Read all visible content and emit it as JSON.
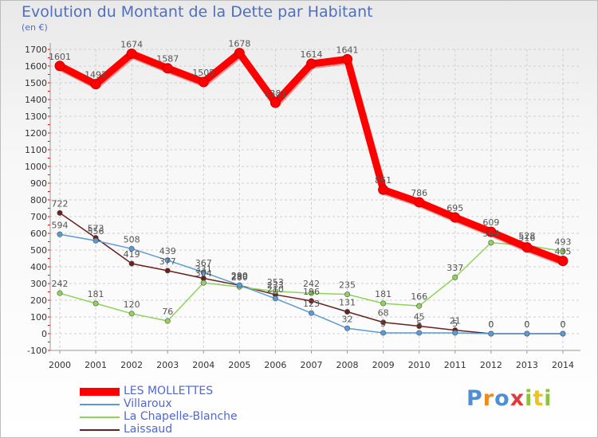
{
  "chart_data": {
    "type": "line",
    "title": "Evolution du Montant de la Dette par Habitant",
    "subtitle": "(en €)",
    "x": [
      "2000",
      "2001",
      "2002",
      "2003",
      "2004",
      "2005",
      "2006",
      "2007",
      "2008",
      "2009",
      "2010",
      "2011",
      "2012",
      "2013",
      "2014"
    ],
    "y_ticks": [
      "-100",
      "0",
      "100",
      "200",
      "300",
      "400",
      "500",
      "600",
      "700",
      "800",
      "900",
      "1000",
      "1100",
      "1200",
      "1300",
      "1400",
      "1500",
      "1600",
      "1700"
    ],
    "ylim": [
      -100,
      1700
    ],
    "grid": true,
    "series": [
      {
        "name": "LES MOLLETTES",
        "color": "#ff0000",
        "values": [
          1601,
          1492,
          1674,
          1587,
          1505,
          1678,
          1381,
          1614,
          1641,
          861,
          786,
          695,
          609,
          516,
          435
        ],
        "labels": [
          "1601",
          "1492",
          "1674",
          "1587",
          "1505",
          "1678",
          "1381",
          "1614",
          "1641",
          "861",
          "786",
          "695",
          "609",
          "516",
          "435"
        ]
      },
      {
        "name": "Villaroux",
        "color": "#5b9bd5",
        "values": [
          594,
          556,
          508,
          439,
          367,
          290,
          210,
          123,
          32,
          5,
          5,
          5,
          0,
          0,
          0
        ],
        "labels": [
          "594",
          "556",
          "508",
          "439",
          "367",
          "290",
          "210",
          "123",
          "32",
          "5",
          "5",
          "5",
          "0",
          "0",
          "0"
        ]
      },
      {
        "name": "La Chapelle-Blanche",
        "color": "#8fd35a",
        "values": [
          242,
          181,
          120,
          76,
          304,
          280,
          253,
          242,
          235,
          181,
          166,
          337,
          544,
          528,
          493
        ],
        "labels": [
          "242",
          "181",
          "120",
          "76",
          "304",
          "280",
          "253",
          "242",
          "235",
          "181",
          "166",
          "337",
          "544",
          "528",
          "493"
        ]
      },
      {
        "name": "Laissaud",
        "color": "#6b1f1f",
        "values": [
          722,
          573,
          419,
          377,
          331,
          289,
          233,
          196,
          131,
          68,
          45,
          21,
          0,
          0,
          0
        ],
        "labels": [
          "722",
          "573",
          "419",
          "377",
          "331",
          "289",
          "233",
          "196",
          "131",
          "68",
          "45",
          "21",
          "0",
          "0",
          "0"
        ]
      }
    ]
  },
  "brand": {
    "text": "Proxiti"
  }
}
